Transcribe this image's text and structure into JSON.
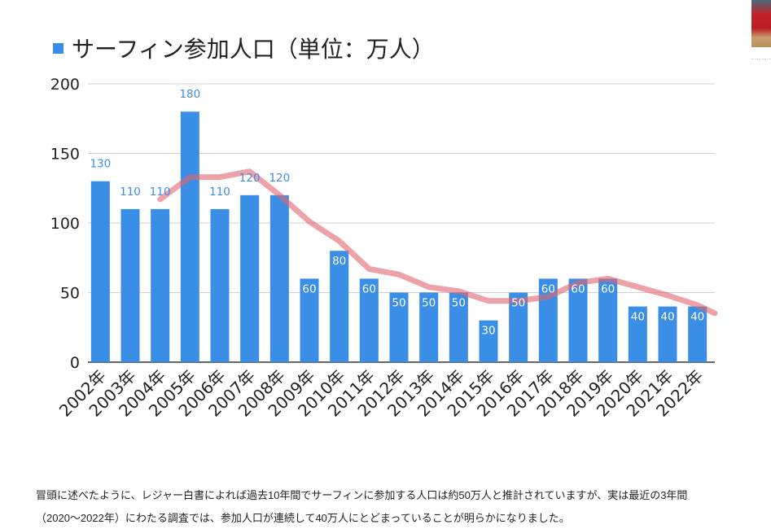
{
  "colors": {
    "bar": "#3a8ee6",
    "trend": "#e0646c",
    "grid": "#d0d0d0",
    "axis": "#333333",
    "label_outside": "#3a8ee6",
    "label_inside": "#ffffff"
  },
  "chart_data": {
    "type": "bar",
    "title": "サーフィン参加人口（単位：万人）",
    "legend": "top-left",
    "xlabel": "",
    "ylabel": "",
    "ylim": [
      0,
      200
    ],
    "yticks": [
      0,
      50,
      100,
      150,
      200
    ],
    "grid": true,
    "categories": [
      "2002年",
      "2003年",
      "2004年",
      "2005年",
      "2006年",
      "2007年",
      "2008年",
      "2009年",
      "2010年",
      "2011年",
      "2012年",
      "2013年",
      "2014年",
      "2015年",
      "2016年",
      "2017年",
      "2018年",
      "2019年",
      "2020年",
      "2021年",
      "2022年"
    ],
    "values": [
      130,
      110,
      110,
      180,
      110,
      120,
      120,
      60,
      80,
      60,
      50,
      50,
      50,
      30,
      50,
      60,
      60,
      60,
      40,
      40,
      40
    ],
    "trend_overlay": {
      "description_hidden": false,
      "start_index": 2,
      "values": [
        117,
        133,
        133,
        137,
        120,
        101,
        87,
        67,
        63,
        54,
        51,
        44,
        44,
        47,
        57,
        60,
        54,
        48,
        41
      ]
    }
  },
  "caption": {
    "line1": "冒頭に述べたように、レジャー白書によれば過去10年間でサーフィンに参加する人口は約50万人と推計されていますが、実は最近の3年間",
    "line2": "（2020〜2022年）にわたる調査では、参加人口が連続して40万人にとどまっていることが明らかになりました。"
  }
}
